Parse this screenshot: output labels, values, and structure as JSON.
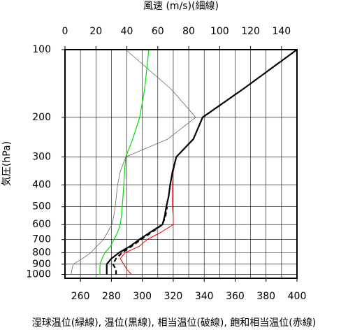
{
  "chart_data": {
    "type": "line",
    "title": "風速 (m/s)(細線)",
    "x_label": "湿球温位(緑線), 温位(黒線), 相当温位(破線), 飽和相当温位(赤線)",
    "y_label": "気圧(hPa)",
    "xlim": [
      250,
      400
    ],
    "xticks": [
      260,
      280,
      300,
      320,
      340,
      360,
      380,
      400
    ],
    "x2lim": [
      0,
      150
    ],
    "x2ticks": [
      0,
      20,
      40,
      60,
      80,
      100,
      120,
      140
    ],
    "ylim": [
      1040,
      100
    ],
    "yticks": [
      100,
      200,
      300,
      400,
      500,
      600,
      700,
      800,
      900,
      1000
    ],
    "ylog": true,
    "grid": true,
    "y": [
      1000,
      950,
      900,
      850,
      800,
      750,
      700,
      650,
      600,
      550,
      500,
      450,
      400,
      350,
      300,
      250,
      200,
      150,
      100
    ],
    "series": [
      {
        "color": "#00dd00",
        "width": 1.2,
        "values": [
          272.6,
          272.6,
          272.6,
          274,
          275.8,
          279.4,
          281.6,
          284,
          285.7,
          286.5,
          287,
          287.5,
          288,
          288.5,
          289.3,
          293.8,
          298.3,
          301.5,
          304.2
        ]
      },
      {
        "color": "#ee0000",
        "width": 1,
        "values": [
          293,
          290,
          288,
          285.7,
          289,
          298,
          303,
          312,
          320,
          320,
          319.5,
          319.5,
          319.5,
          320,
          322,
          333,
          339,
          365,
          400
        ]
      },
      {
        "color": "#000000",
        "width": 2.2,
        "values": [
          277,
          277,
          277,
          280,
          285,
          292,
          298,
          305,
          313,
          314.5,
          315.5,
          317,
          318,
          319.5,
          322,
          333,
          339,
          365,
          400
        ]
      },
      {
        "color": "#000000",
        "width": 2.2,
        "dash": "6,4",
        "values": [
          283,
          283,
          281,
          283,
          287,
          293,
          299,
          306,
          313,
          315,
          316,
          null,
          null,
          null,
          null,
          null,
          null,
          null,
          null
        ]
      },
      {
        "color": "#666666",
        "width": 0.8,
        "axis": "x2",
        "values": [
          4,
          4.5,
          5.4,
          11.3,
          16.7,
          20.5,
          24.8,
          27.5,
          30.3,
          31.5,
          32.5,
          33.2,
          34,
          35.7,
          39.3,
          66.4,
          84.5,
          68.7,
          39.3
        ]
      }
    ]
  }
}
